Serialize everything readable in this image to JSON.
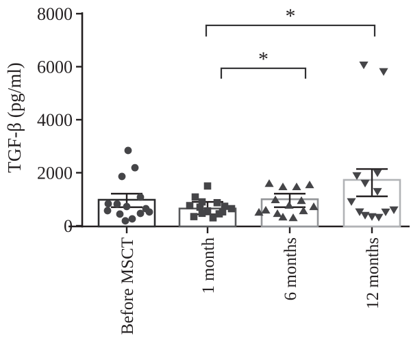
{
  "chart_data": {
    "type": "scatter",
    "subtype": "bar-with-scatter-overlay",
    "title": "",
    "ylabel": "TGF-β (pg/ml)",
    "xlabel": "",
    "ylim": [
      0,
      8000
    ],
    "yticks": [
      0,
      2000,
      4000,
      6000,
      8000
    ],
    "categories": [
      "Before MSCT",
      "1 month",
      "6 months",
      "12 months"
    ],
    "legend": "none",
    "grid": false,
    "marker_color": "#454548",
    "axis_color": "#231f20",
    "error_bar_color": "#231f20",
    "bracket_color": "#2f2f31",
    "series": [
      {
        "name": "Before MSCT",
        "marker": "circle",
        "bar_mean": 980,
        "err_high": 1210,
        "err_low": 700,
        "bar_outline": "#2b2b2d",
        "points": [
          [
            2,
            2840
          ],
          [
            12,
            2190
          ],
          [
            -7,
            1860
          ],
          [
            20,
            1080
          ],
          [
            -27,
            830
          ],
          [
            -14,
            820
          ],
          [
            0,
            725
          ],
          [
            28,
            645
          ],
          [
            -28,
            570
          ],
          [
            33,
            520
          ],
          [
            20,
            465
          ],
          [
            -10,
            440
          ],
          [
            8,
            260
          ],
          [
            -2,
            185
          ]
        ]
      },
      {
        "name": "1 month",
        "marker": "square",
        "bar_mean": 650,
        "err_high": 900,
        "err_low": 430,
        "bar_outline": "#58595b",
        "points": [
          [
            0,
            1500
          ],
          [
            -18,
            1085
          ],
          [
            -8,
            900
          ],
          [
            14,
            870
          ],
          [
            -26,
            760
          ],
          [
            25,
            735
          ],
          [
            -11,
            700
          ],
          [
            35,
            645
          ],
          [
            0,
            560
          ],
          [
            22,
            525
          ],
          [
            -8,
            470
          ],
          [
            17,
            450
          ],
          [
            -20,
            345
          ],
          [
            8,
            300
          ]
        ]
      },
      {
        "name": "6 months",
        "marker": "triangle-up",
        "bar_mean": 1000,
        "err_high": 1210,
        "err_low": 700,
        "bar_outline": "#939598",
        "points": [
          [
            -30,
            1600
          ],
          [
            -10,
            1475
          ],
          [
            10,
            1475
          ],
          [
            29,
            1550
          ],
          [
            -21,
            985
          ],
          [
            17,
            955
          ],
          [
            -1,
            775
          ],
          [
            35,
            725
          ],
          [
            -35,
            595
          ],
          [
            20,
            570
          ],
          [
            -45,
            515
          ],
          [
            -18,
            465
          ],
          [
            -10,
            335
          ],
          [
            5,
            310
          ]
        ]
      },
      {
        "name": "12 months",
        "marker": "triangle-down",
        "bar_mean": 1730,
        "err_high": 2140,
        "err_low": 1110,
        "bar_outline": "#b1b3b6",
        "points": [
          [
            -12,
            6060
          ],
          [
            17,
            5810
          ],
          [
            8,
            1990
          ],
          [
            -22,
            1885
          ],
          [
            -10,
            1600
          ],
          [
            8,
            1290
          ],
          [
            -30,
            905
          ],
          [
            32,
            595
          ],
          [
            -18,
            520
          ],
          [
            20,
            515
          ],
          [
            -10,
            390
          ],
          [
            0,
            340
          ],
          [
            10,
            315
          ]
        ]
      }
    ],
    "significance": [
      {
        "compare": [
          "1 month",
          "12 months"
        ],
        "label": "*",
        "y_value": 7560,
        "leg_drop": 420,
        "x1_dx": -2,
        "x2_dx": 4
      },
      {
        "compare": [
          "1 month",
          "6 months"
        ],
        "label": "*",
        "y_value": 5940,
        "leg_drop": 390,
        "x1_dx": 20,
        "x2_dx": 23
      }
    ]
  }
}
